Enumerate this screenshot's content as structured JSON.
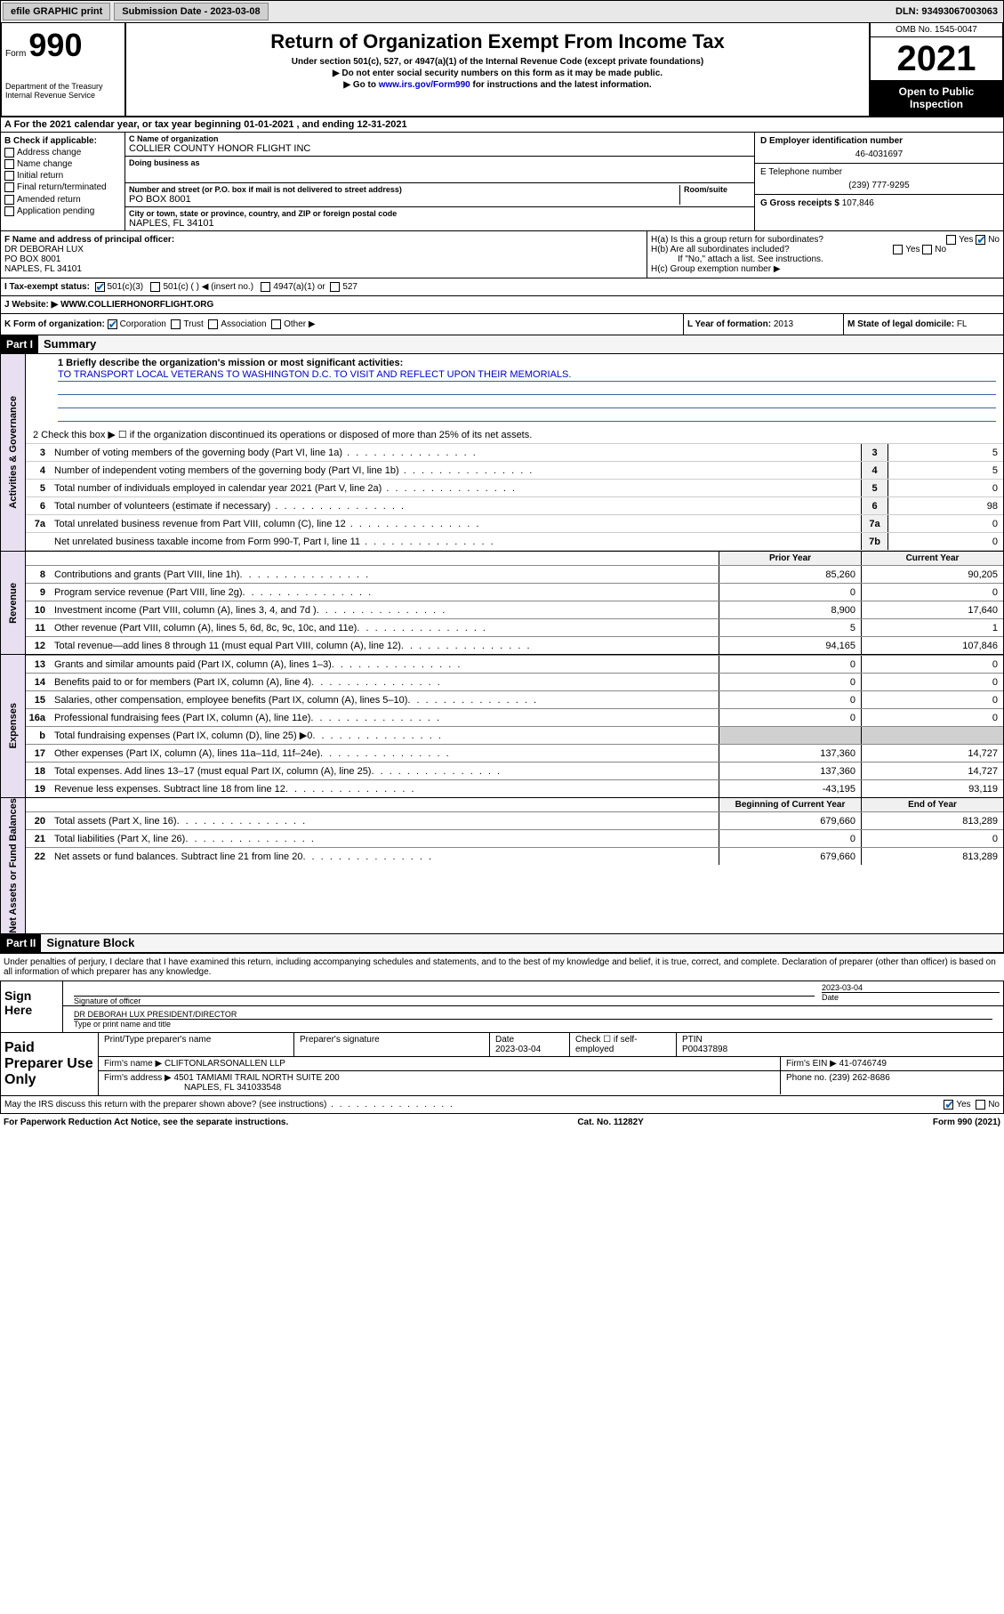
{
  "topbar": {
    "efile": "efile GRAPHIC print",
    "submission_label": "Submission Date - 2023-03-08",
    "dln": "DLN: 93493067003063"
  },
  "header": {
    "form_label": "Form",
    "form_num": "990",
    "title": "Return of Organization Exempt From Income Tax",
    "sub1": "Under section 501(c), 527, or 4947(a)(1) of the Internal Revenue Code (except private foundations)",
    "sub2": "▶ Do not enter social security numbers on this form as it may be made public.",
    "sub3_pre": "▶ Go to ",
    "sub3_link": "www.irs.gov/Form990",
    "sub3_post": " for instructions and the latest information.",
    "dept": "Department of the Treasury\nInternal Revenue Service",
    "omb": "OMB No. 1545-0047",
    "year": "2021",
    "inspect": "Open to Public Inspection"
  },
  "sectionA": "A For the 2021 calendar year, or tax year beginning 01-01-2021   , and ending 12-31-2021",
  "colB": {
    "hdr": "B Check if applicable:",
    "opts": [
      "Address change",
      "Name change",
      "Initial return",
      "Final return/terminated",
      "Amended return",
      "Application pending"
    ]
  },
  "colC": {
    "name_lbl": "C Name of organization",
    "name": "COLLIER COUNTY HONOR FLIGHT INC",
    "dba_lbl": "Doing business as",
    "dba": "",
    "street_lbl": "Number and street (or P.O. box if mail is not delivered to street address)",
    "room_lbl": "Room/suite",
    "street": "PO BOX 8001",
    "city_lbl": "City or town, state or province, country, and ZIP or foreign postal code",
    "city": "NAPLES, FL  34101"
  },
  "colDE": {
    "d_lbl": "D Employer identification number",
    "d_val": "46-4031697",
    "e_lbl": "E Telephone number",
    "e_val": "(239) 777-9295",
    "g_lbl": "G Gross receipts $",
    "g_val": "107,846"
  },
  "rowF": {
    "f_lbl": "F Name and address of principal officer:",
    "f_name": "DR DEBORAH LUX",
    "f_street": "PO BOX 8001",
    "f_city": "NAPLES, FL  34101"
  },
  "rowH": {
    "ha": "H(a)  Is this a group return for subordinates?",
    "ha_yes": "Yes",
    "ha_no": "No",
    "hb": "H(b)  Are all subordinates included?",
    "hb_yes": "Yes",
    "hb_no": "No",
    "hb_note": "If \"No,\" attach a list. See instructions.",
    "hc": "H(c)  Group exemption number ▶"
  },
  "rowI": {
    "lbl": "I  Tax-exempt status:",
    "o1": "501(c)(3)",
    "o2": "501(c) (  ) ◀ (insert no.)",
    "o3": "4947(a)(1) or",
    "o4": "527"
  },
  "rowJ": {
    "lbl": "J  Website: ▶",
    "val": "WWW.COLLIERHONORFLIGHT.ORG"
  },
  "rowK": {
    "lbl": "K Form of organization:",
    "o1": "Corporation",
    "o2": "Trust",
    "o3": "Association",
    "o4": "Other ▶",
    "l_lbl": "L Year of formation:",
    "l_val": "2013",
    "m_lbl": "M State of legal domicile:",
    "m_val": "FL"
  },
  "part1": {
    "tag": "Part I",
    "title": "Summary"
  },
  "part2": {
    "tag": "Part II",
    "title": "Signature Block"
  },
  "mission": {
    "lbl": "1  Briefly describe the organization's mission or most significant activities:",
    "txt": "TO TRANSPORT LOCAL VETERANS TO WASHINGTON D.C. TO VISIT AND REFLECT UPON THEIR MEMORIALS."
  },
  "line2": "2  Check this box ▶ ☐  if the organization discontinued its operations or disposed of more than 25% of its net assets.",
  "gov_lines": [
    {
      "n": "3",
      "t": "Number of voting members of the governing body (Part VI, line 1a)",
      "b": "3",
      "v": "5"
    },
    {
      "n": "4",
      "t": "Number of independent voting members of the governing body (Part VI, line 1b)",
      "b": "4",
      "v": "5"
    },
    {
      "n": "5",
      "t": "Total number of individuals employed in calendar year 2021 (Part V, line 2a)",
      "b": "5",
      "v": "0"
    },
    {
      "n": "6",
      "t": "Total number of volunteers (estimate if necessary)",
      "b": "6",
      "v": "98"
    },
    {
      "n": "7a",
      "t": "Total unrelated business revenue from Part VIII, column (C), line 12",
      "b": "7a",
      "v": "0"
    },
    {
      "n": "",
      "t": "Net unrelated business taxable income from Form 990-T, Part I, line 11",
      "b": "7b",
      "v": "0"
    }
  ],
  "twocol_hdr": {
    "h1": "Prior Year",
    "h2": "Current Year"
  },
  "twocol_hdr2": {
    "h1": "Beginning of Current Year",
    "h2": "End of Year"
  },
  "revenue": [
    {
      "n": "8",
      "t": "Contributions and grants (Part VIII, line 1h)",
      "v1": "85,260",
      "v2": "90,205"
    },
    {
      "n": "9",
      "t": "Program service revenue (Part VIII, line 2g)",
      "v1": "0",
      "v2": "0"
    },
    {
      "n": "10",
      "t": "Investment income (Part VIII, column (A), lines 3, 4, and 7d )",
      "v1": "8,900",
      "v2": "17,640"
    },
    {
      "n": "11",
      "t": "Other revenue (Part VIII, column (A), lines 5, 6d, 8c, 9c, 10c, and 11e)",
      "v1": "5",
      "v2": "1"
    },
    {
      "n": "12",
      "t": "Total revenue—add lines 8 through 11 (must equal Part VIII, column (A), line 12)",
      "v1": "94,165",
      "v2": "107,846"
    }
  ],
  "expenses": [
    {
      "n": "13",
      "t": "Grants and similar amounts paid (Part IX, column (A), lines 1–3)",
      "v1": "0",
      "v2": "0"
    },
    {
      "n": "14",
      "t": "Benefits paid to or for members (Part IX, column (A), line 4)",
      "v1": "0",
      "v2": "0"
    },
    {
      "n": "15",
      "t": "Salaries, other compensation, employee benefits (Part IX, column (A), lines 5–10)",
      "v1": "0",
      "v2": "0"
    },
    {
      "n": "16a",
      "t": "Professional fundraising fees (Part IX, column (A), line 11e)",
      "v1": "0",
      "v2": "0"
    },
    {
      "n": "b",
      "t": "Total fundraising expenses (Part IX, column (D), line 25) ▶0",
      "v1": "",
      "v2": "",
      "shaded": true
    },
    {
      "n": "17",
      "t": "Other expenses (Part IX, column (A), lines 11a–11d, 11f–24e)",
      "v1": "137,360",
      "v2": "14,727"
    },
    {
      "n": "18",
      "t": "Total expenses. Add lines 13–17 (must equal Part IX, column (A), line 25)",
      "v1": "137,360",
      "v2": "14,727"
    },
    {
      "n": "19",
      "t": "Revenue less expenses. Subtract line 18 from line 12",
      "v1": "-43,195",
      "v2": "93,119"
    }
  ],
  "netassets": [
    {
      "n": "20",
      "t": "Total assets (Part X, line 16)",
      "v1": "679,660",
      "v2": "813,289"
    },
    {
      "n": "21",
      "t": "Total liabilities (Part X, line 26)",
      "v1": "0",
      "v2": "0"
    },
    {
      "n": "22",
      "t": "Net assets or fund balances. Subtract line 21 from line 20",
      "v1": "679,660",
      "v2": "813,289"
    }
  ],
  "vlabels": {
    "gov": "Activities & Governance",
    "rev": "Revenue",
    "exp": "Expenses",
    "net": "Net Assets or Fund Balances"
  },
  "sig": {
    "decl": "Under penalties of perjury, I declare that I have examined this return, including accompanying schedules and statements, and to the best of my knowledge and belief, it is true, correct, and complete. Declaration of preparer (other than officer) is based on all information of which preparer has any knowledge.",
    "sign_here": "Sign Here",
    "sig_officer": "Signature of officer",
    "date_lbl": "Date",
    "date": "2023-03-04",
    "name": "DR DEBORAH LUX  PRESIDENT/DIRECTOR",
    "name_lbl": "Type or print name and title"
  },
  "paid": {
    "title": "Paid Preparer Use Only",
    "h1": "Print/Type preparer's name",
    "h2": "Preparer's signature",
    "h3": "Date",
    "h4": "Check ☐ if self-employed",
    "h5": "PTIN",
    "date": "2023-03-04",
    "ptin": "P00437898",
    "firm_lbl": "Firm's name   ▶",
    "firm": "CLIFTONLARSONALLEN LLP",
    "ein_lbl": "Firm's EIN ▶",
    "ein": "41-0746749",
    "addr_lbl": "Firm's address ▶",
    "addr1": "4501 TAMIAMI TRAIL NORTH SUITE 200",
    "addr2": "NAPLES, FL  341033548",
    "phone_lbl": "Phone no.",
    "phone": "(239) 262-8686"
  },
  "bottom": {
    "q": "May the IRS discuss this return with the preparer shown above? (see instructions)",
    "yes": "Yes",
    "no": "No"
  },
  "footer": {
    "l": "For Paperwork Reduction Act Notice, see the separate instructions.",
    "m": "Cat. No. 11282Y",
    "r": "Form 990 (2021)"
  }
}
